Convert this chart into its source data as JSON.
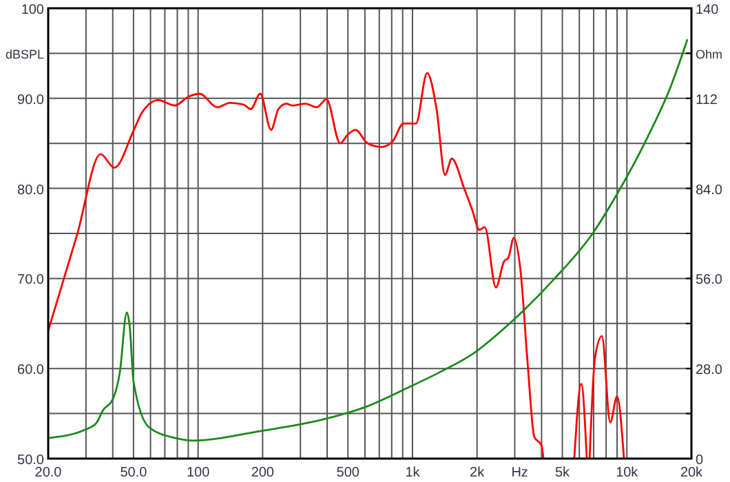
{
  "chart_data": {
    "type": "line",
    "xlabel": "Hz",
    "ylabel": "dBSPL",
    "y2label": "Ohm",
    "log": "x",
    "grid": true,
    "xlim": [
      20,
      20000
    ],
    "xticks": [
      {
        "value": 20,
        "label": "20.0"
      },
      {
        "value": 30,
        "label": null
      },
      {
        "value": 40,
        "label": null
      },
      {
        "value": 50,
        "label": "50.0"
      },
      {
        "value": 60,
        "label": null
      },
      {
        "value": 70,
        "label": null
      },
      {
        "value": 80,
        "label": null
      },
      {
        "value": 90,
        "label": null
      },
      100,
      200,
      {
        "value": 300,
        "label": null
      },
      {
        "value": 400,
        "label": null
      },
      500,
      {
        "value": 600,
        "label": null
      },
      {
        "value": 700,
        "label": null
      },
      {
        "value": 800,
        "label": null
      },
      {
        "value": 900,
        "label": null
      },
      {
        "value": 1000,
        "label": "1k"
      },
      {
        "value": 2000,
        "label": "2k"
      },
      {
        "value": 3000,
        "label": null
      },
      {
        "value": 4000,
        "label": null
      },
      {
        "value": 5000,
        "label": "5k"
      },
      {
        "value": 6000,
        "label": null
      },
      {
        "value": 7000,
        "label": null
      },
      {
        "value": 8000,
        "label": null
      },
      {
        "value": 9000,
        "label": null
      },
      {
        "value": 10000,
        "label": "10k"
      },
      {
        "value": 20000,
        "label": "20k"
      }
    ],
    "ylim": [
      50,
      100
    ],
    "yticks": [
      {
        "value": 50,
        "label": "50.0"
      },
      {
        "value": 55,
        "label": null
      },
      {
        "value": 60,
        "label": "60.0"
      },
      {
        "value": 65,
        "label": null
      },
      {
        "value": 70,
        "label": "70.0"
      },
      {
        "value": 75,
        "label": null
      },
      {
        "value": 80,
        "label": "80.0"
      },
      {
        "value": 85,
        "label": null
      },
      {
        "value": 90,
        "label": "90.0"
      },
      {
        "value": 95,
        "label": null
      },
      100
    ],
    "y2lim": [
      0,
      140
    ],
    "y2ticks": [
      0,
      {
        "value": 14,
        "label": null
      },
      {
        "value": 28,
        "label": "28.0"
      },
      {
        "value": 42,
        "label": null
      },
      {
        "value": 56,
        "label": "56.0"
      },
      {
        "value": 70,
        "label": null
      },
      {
        "value": 84,
        "label": "84.0"
      },
      {
        "value": 98,
        "label": null
      },
      112,
      {
        "value": 126,
        "label": null
      },
      140
    ],
    "series": [
      {
        "color": "#ff0000",
        "x": [
          20,
          27.3,
          35.1,
          40.7,
          50,
          54.7,
          65.3,
          77.9,
          90.4,
          101.8,
          123,
          141,
          163,
          176,
          195,
          219,
          237,
          258,
          276,
          317,
          358,
          397,
          460,
          496,
          542,
          618,
          718,
          807,
          908,
          1038,
          1170,
          1297,
          1418,
          1526,
          1742,
          1906,
          2048,
          2174,
          2450,
          2674,
          2800,
          2967,
          3193,
          3441,
          3700,
          3990,
          4080
        ],
        "values": [
          64.2,
          74.9,
          83.8,
          82.3,
          86.4,
          88.4,
          89.8,
          89.2,
          90.2,
          90.5,
          89,
          89.5,
          89.3,
          88.8,
          90.5,
          86.5,
          88.8,
          89.4,
          89.2,
          89.4,
          89,
          89.9,
          85,
          85.9,
          86.5,
          85,
          84.6,
          85.2,
          87.2,
          87.2,
          92.8,
          88.7,
          81.5,
          83.3,
          80,
          77.5,
          75.4,
          75.7,
          69,
          71.9,
          72.3,
          74.5,
          70.8,
          60.7,
          52.4,
          51.5,
          50
        ]
      },
      {
        "color": "#ff0000",
        "x": [
          5685,
          6126,
          6500
        ],
        "values": [
          50,
          58.3,
          50
        ]
      },
      {
        "color": "#ff0000",
        "x": [
          6700,
          7100,
          7650,
          8360,
          9000,
          9690
        ],
        "values": [
          50,
          61.2,
          63.6,
          54,
          56.9,
          50
        ]
      },
      {
        "color": "#1a8a1a",
        "axis": "y2",
        "x": [
          20,
          29.8,
          33.6,
          36,
          40,
          43.2,
          46.5,
          48,
          50,
          58.9,
          78,
          94.5,
          197,
          374,
          618,
          908,
          1354,
          1906,
          2838,
          4620,
          6890,
          9300,
          12460,
          16000,
          19100
        ],
        "values": [
          6.4,
          9,
          11.1,
          15,
          18.4,
          27,
          45.4,
          41.1,
          24,
          9.8,
          6.4,
          5.6,
          8.6,
          12,
          16.3,
          21.4,
          27,
          32.5,
          42,
          56.1,
          69.8,
          83.9,
          99.8,
          115.6,
          130.1
        ]
      }
    ]
  }
}
